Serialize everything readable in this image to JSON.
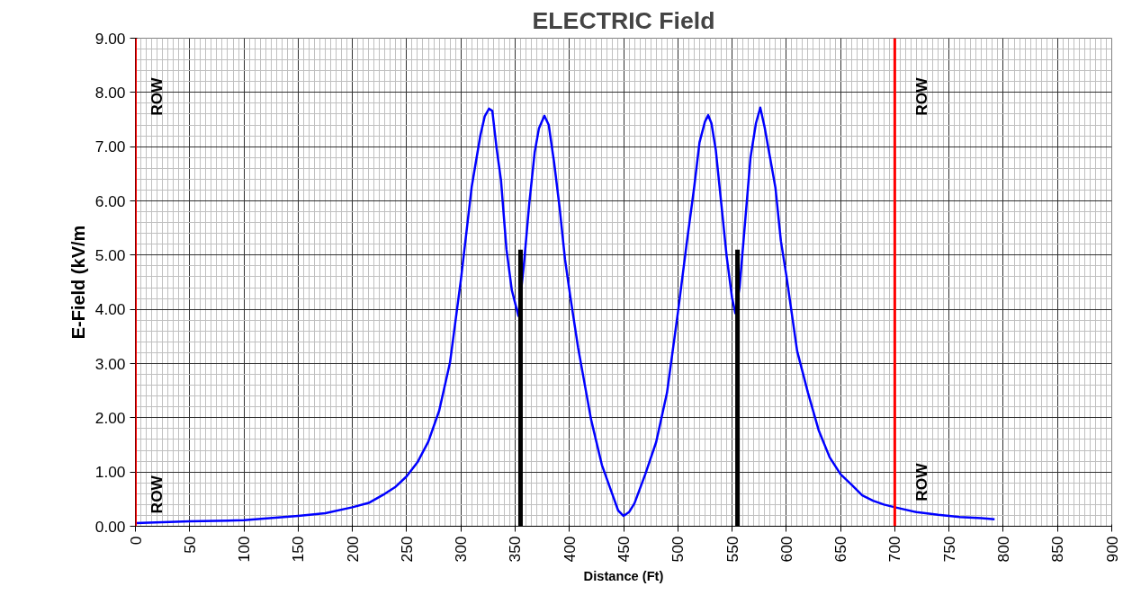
{
  "chart_data": {
    "type": "line",
    "title": "ELECTRIC Field",
    "xlabel": "Distance (Ft)",
    "ylabel": "E-Field (kV/m",
    "xlim": [
      0,
      900
    ],
    "xticks": [
      0,
      50,
      100,
      150,
      200,
      250,
      300,
      350,
      400,
      450,
      500,
      550,
      600,
      650,
      700,
      750,
      800,
      850,
      900
    ],
    "ylim": [
      0,
      9
    ],
    "yticks": [
      {
        "value": 0,
        "label": "0.00"
      },
      {
        "value": 1,
        "label": "1.00"
      },
      {
        "value": 2,
        "label": "2.00"
      },
      {
        "value": 3,
        "label": "3.00"
      },
      {
        "value": 4,
        "label": "4.00"
      },
      {
        "value": 5,
        "label": "5.00"
      },
      {
        "value": 6,
        "label": "6.00"
      },
      {
        "value": 7,
        "label": "7.00"
      },
      {
        "value": 8,
        "label": "8.00"
      },
      {
        "value": 9,
        "label": "9.00"
      }
    ],
    "grid": true,
    "marker": "none",
    "line_style": "solid",
    "series": [
      {
        "color": "#0000ff",
        "x": [
          0,
          50,
          100,
          150,
          175,
          200,
          215,
          230,
          240,
          250,
          260,
          270,
          280,
          290,
          300,
          310,
          318,
          322,
          326,
          329,
          333,
          337,
          342,
          347,
          353,
          358,
          363,
          368,
          372,
          377,
          381,
          386,
          391,
          396,
          401,
          408,
          420,
          430,
          440,
          445,
          450,
          455,
          460,
          470,
          480,
          490,
          500,
          508,
          515,
          520,
          525,
          528,
          531,
          535,
          540,
          545,
          550,
          553,
          557,
          562,
          567,
          572,
          576,
          580,
          585,
          590,
          595,
          600,
          605,
          610,
          620,
          630,
          640,
          650,
          660,
          670,
          680,
          690,
          700,
          720,
          740,
          760,
          780,
          792
        ],
        "values": [
          0.06,
          0.09,
          0.11,
          0.19,
          0.24,
          0.35,
          0.43,
          0.6,
          0.73,
          0.92,
          1.18,
          1.56,
          2.13,
          3.02,
          4.54,
          6.26,
          7.21,
          7.56,
          7.7,
          7.66,
          6.96,
          6.38,
          5.11,
          4.35,
          3.88,
          4.8,
          5.94,
          6.89,
          7.34,
          7.57,
          7.4,
          6.7,
          5.88,
          4.92,
          4.22,
          3.3,
          1.97,
          1.13,
          0.57,
          0.29,
          0.19,
          0.26,
          0.42,
          0.96,
          1.55,
          2.46,
          3.93,
          5.19,
          6.24,
          7.08,
          7.46,
          7.58,
          7.43,
          6.94,
          5.96,
          4.98,
          4.21,
          3.93,
          4.42,
          5.61,
          6.8,
          7.43,
          7.72,
          7.36,
          6.8,
          6.24,
          5.26,
          4.63,
          3.93,
          3.23,
          2.46,
          1.76,
          1.27,
          0.96,
          0.77,
          0.57,
          0.47,
          0.4,
          0.35,
          0.26,
          0.21,
          0.17,
          0.15,
          0.13
        ]
      },
      {
        "color": "#000000",
        "x": [
          355,
          355
        ],
        "values": [
          0,
          5.1
        ]
      },
      {
        "color": "#000000",
        "x": [
          555,
          555
        ],
        "values": [
          0,
          5.1
        ]
      }
    ],
    "ref_lines": [
      {
        "axis": "x",
        "value": 0,
        "color": "#ff0000"
      },
      {
        "axis": "x",
        "value": 700,
        "color": "#ff0000"
      }
    ],
    "annotations": [
      "ROW",
      "ROW",
      "ROW",
      "ROW"
    ]
  }
}
